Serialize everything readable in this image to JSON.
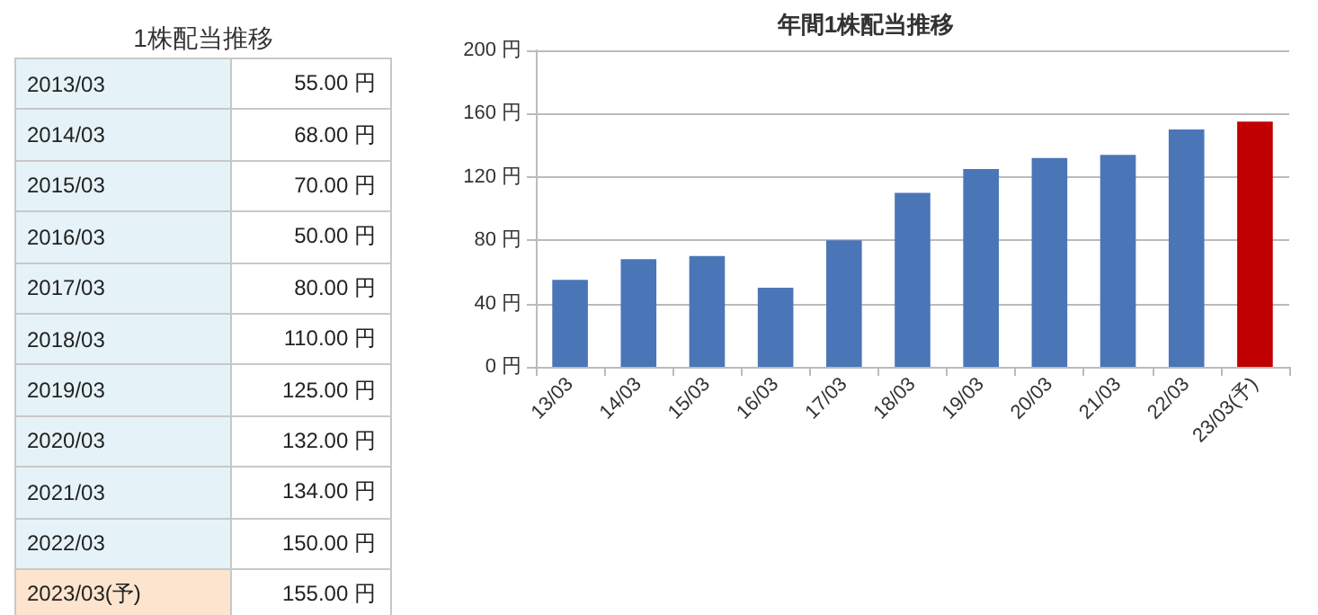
{
  "chart_data": [
    {
      "type": "other",
      "title": "1株配当推移",
      "categories": [
        "2013/03",
        "2014/03",
        "2015/03",
        "2016/03",
        "2017/03",
        "2018/03",
        "2019/03",
        "2020/03",
        "2021/03",
        "2022/03",
        "2023/03(予)"
      ],
      "values": [
        55,
        68,
        70,
        50,
        80,
        110,
        125,
        132,
        134,
        150,
        155
      ],
      "value_labels": [
        "55.00 円",
        "68.00 円",
        "70.00 円",
        "50.00 円",
        "80.00 円",
        "110.00 円",
        "125.00 円",
        "132.00 円",
        "134.00 円",
        "150.00 円",
        "155.00 円"
      ],
      "colors": [
        "#e5f3f8",
        "#e5f3f8",
        "#e5f3f8",
        "#e5f3f8",
        "#e5f3f8",
        "#e5f3f8",
        "#e5f3f8",
        "#e5f3f8",
        "#e5f3f8",
        "#e5f3f8",
        "#fde4cf"
      ]
    },
    {
      "type": "bar",
      "title": "年間1株配当推移",
      "categories": [
        "13/03",
        "14/03",
        "15/03",
        "16/03",
        "17/03",
        "18/03",
        "19/03",
        "20/03",
        "21/03",
        "22/03",
        "23/03(予)"
      ],
      "values": [
        55,
        68,
        70,
        50,
        80,
        110,
        125,
        132,
        134,
        150,
        155
      ],
      "colors": [
        "#4a76b8",
        "#4a76b8",
        "#4a76b8",
        "#4a76b8",
        "#4a76b8",
        "#4a76b8",
        "#4a76b8",
        "#4a76b8",
        "#4a76b8",
        "#4a76b8",
        "#c00000"
      ],
      "ylim": [
        0,
        200
      ],
      "yticks": [
        {
          "value": 0,
          "label": "0 円"
        },
        {
          "value": 40,
          "label": "40 円"
        },
        {
          "value": 80,
          "label": "80 円"
        },
        {
          "value": 120,
          "label": "120 円"
        },
        {
          "value": 160,
          "label": "160 円"
        },
        {
          "value": 200,
          "label": "200 円"
        }
      ],
      "grid": "y"
    }
  ]
}
